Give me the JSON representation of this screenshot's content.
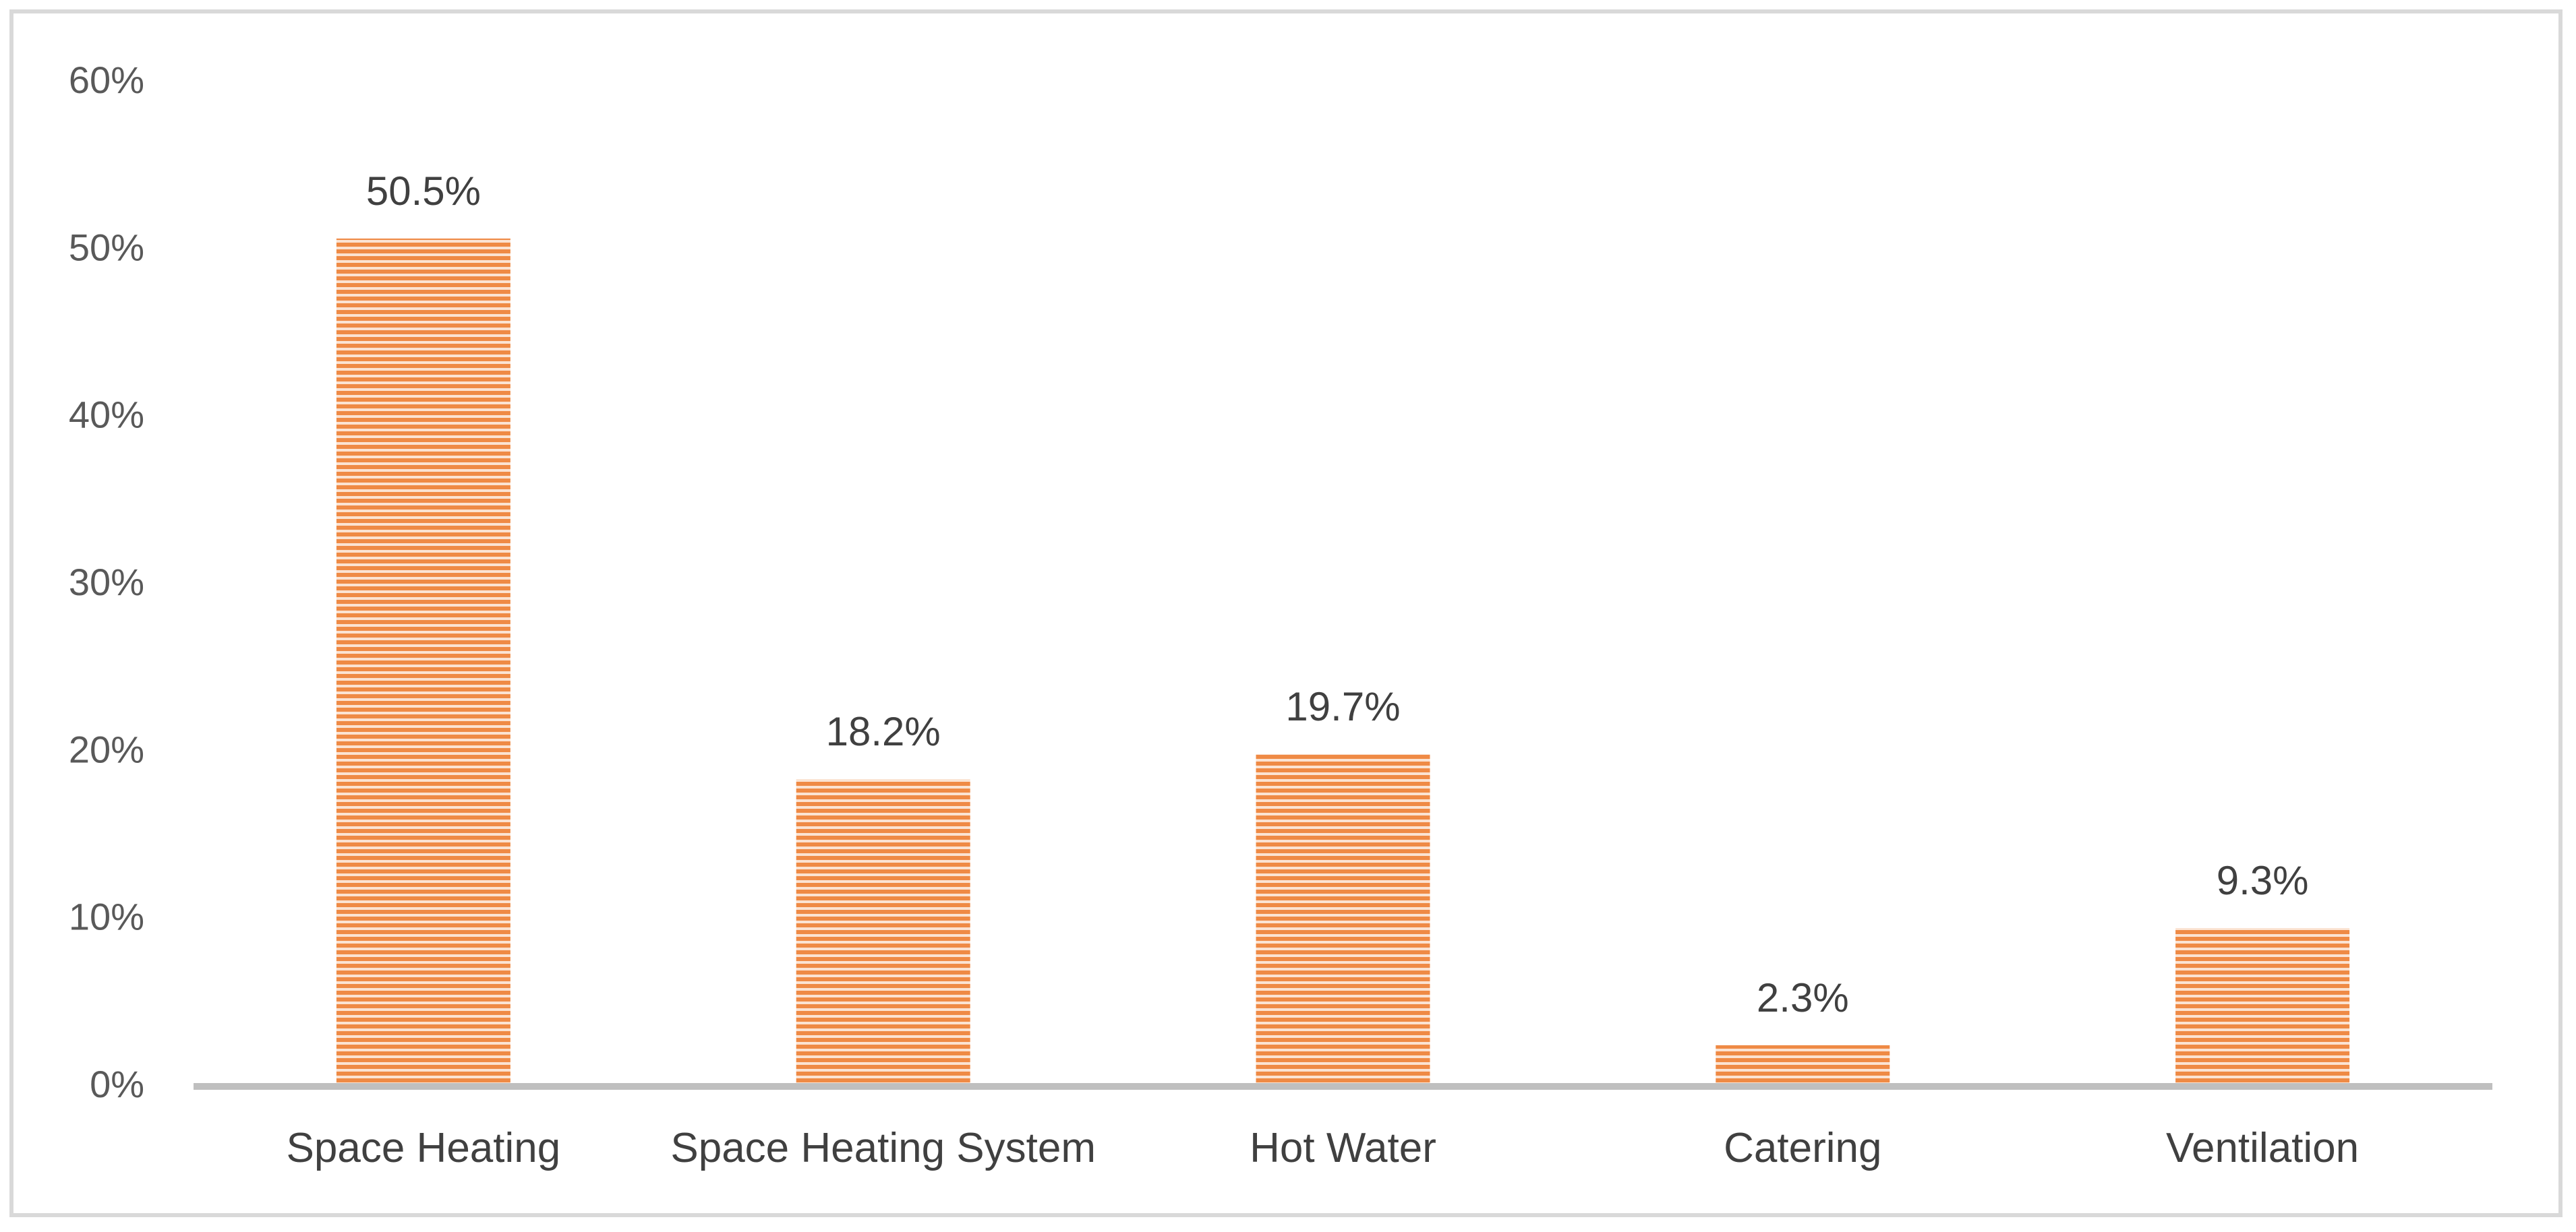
{
  "chart_data": {
    "type": "bar",
    "title": "",
    "xlabel": "",
    "ylabel": "",
    "categories": [
      "Space Heating",
      "Space Heating System",
      "Hot Water",
      "Catering",
      "Ventilation"
    ],
    "values": [
      50.5,
      18.2,
      19.7,
      2.3,
      9.3
    ],
    "data_labels": [
      "50.5%",
      "18.2%",
      "19.7%",
      "2.3%",
      "9.3%"
    ],
    "ylim": [
      0,
      60
    ],
    "yticks": [
      0,
      10,
      20,
      30,
      40,
      50,
      60
    ],
    "ytick_labels": [
      "0%",
      "10%",
      "20%",
      "30%",
      "40%",
      "50%",
      "60%"
    ],
    "grid": false,
    "legend": "none",
    "colors": {
      "bar_fill": "#f4b183",
      "bar_stripe": "#ed7d31",
      "axis": "#bfbfbf",
      "frame": "#d9d9d9"
    }
  }
}
